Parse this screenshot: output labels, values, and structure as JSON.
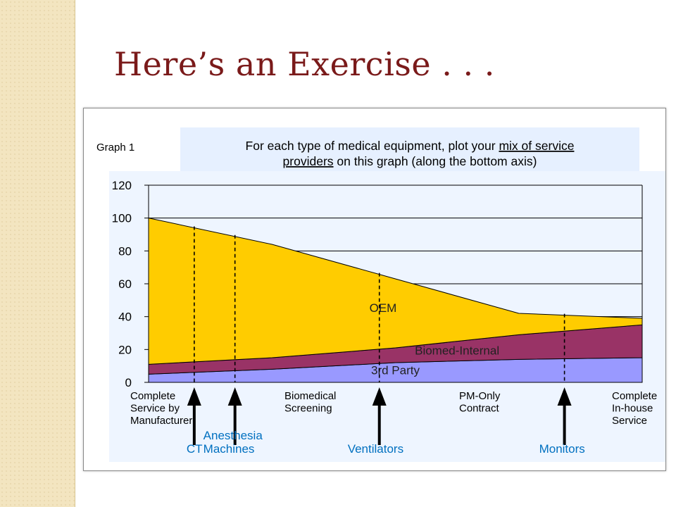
{
  "slide": {
    "title": "Here’s an Exercise . . ."
  },
  "graph": {
    "label": "Graph 1",
    "instruction_line1_a": "For each type of medical equipment, plot your ",
    "instruction_line1_b": "mix of service",
    "instruction_line2_a": "providers",
    "instruction_line2_b": " on this graph (along the bottom axis)"
  },
  "chart_data": {
    "type": "area",
    "stacked": true,
    "ylim": [
      0,
      120
    ],
    "yticks": [
      0,
      20,
      40,
      60,
      80,
      100,
      120
    ],
    "grid": true,
    "x": [
      0,
      1,
      2,
      3,
      4
    ],
    "x_tick_labels": [
      [
        "Complete",
        "Service by",
        "Manufacturer"
      ],
      [
        "Biomedical",
        "Screening"
      ],
      [
        "PM-Only",
        "Contract"
      ],
      [],
      [
        "Complete",
        "In-house",
        "Service"
      ]
    ],
    "series": [
      {
        "name": "3rd Party",
        "values": [
          5,
          8,
          12,
          14,
          15
        ],
        "color": "#9999ff"
      },
      {
        "name": "Biomed-Internal",
        "values": [
          6,
          7,
          9,
          15,
          20
        ],
        "color": "#993366"
      },
      {
        "name": "OEM",
        "values": [
          89,
          69,
          42,
          13,
          4
        ],
        "color": "#ffcc00"
      }
    ],
    "markers": [
      {
        "label": [
          "CT"
        ],
        "x": 0.37
      },
      {
        "label": [
          "Anesthesia",
          "Machines"
        ],
        "x": 0.7
      },
      {
        "label": [
          "Ventilators"
        ],
        "x": 1.87
      },
      {
        "label": [
          "Monitors"
        ],
        "x": 3.37
      }
    ],
    "marker_color": "#0070c0"
  }
}
